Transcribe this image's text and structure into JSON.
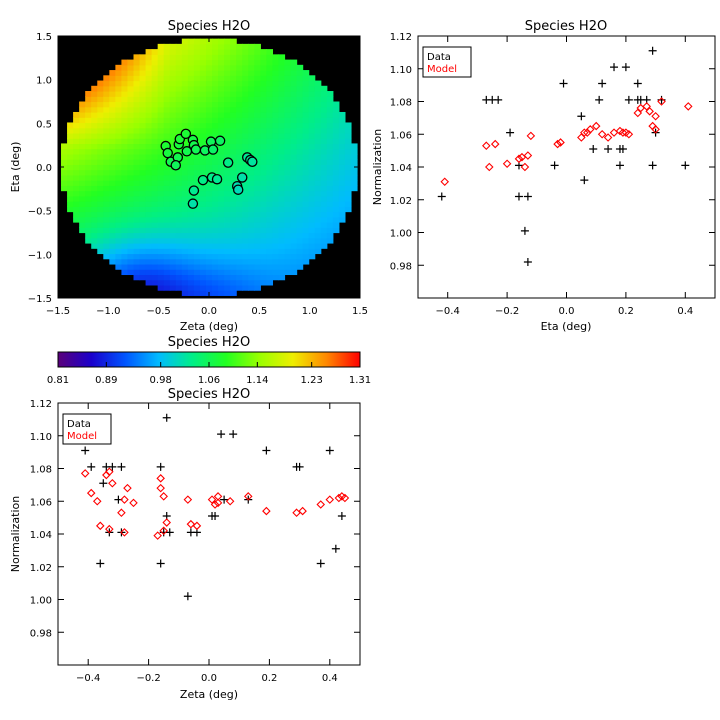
{
  "chart_data": [
    {
      "id": "map",
      "type": "heatmap",
      "title": "Species H2O",
      "xlabel": "Zeta (deg)",
      "ylabel": "Eta (deg)",
      "xlim": [
        -1.5,
        1.5
      ],
      "ylim": [
        -1.5,
        1.5
      ],
      "xticks": [
        -1.5,
        -1.0,
        -0.5,
        0.0,
        0.5,
        1.0,
        1.5
      ],
      "yticks": [
        -1.5,
        -1.0,
        -0.5,
        0.0,
        0.5,
        1.0,
        1.5
      ],
      "xtick_labels": [
        "−1.5",
        "−1.0",
        "−0.5",
        "0.0",
        "0.5",
        "1.0",
        "1.5"
      ],
      "ytick_labels": [
        "−1.5",
        "−1.0",
        "−0.5",
        "0.0",
        "0.5",
        "1.0",
        "1.5"
      ],
      "background": "#000000",
      "field_radius_deg": 1.47,
      "colormap": [
        "#5a007a",
        "#1a00cc",
        "#0055ff",
        "#00bbff",
        "#00ee88",
        "#22ff22",
        "#99ff00",
        "#eeee00",
        "#ff8800",
        "#ff0000"
      ],
      "points": [
        {
          "x": -0.43,
          "y": 0.24
        },
        {
          "x": -0.41,
          "y": 0.16
        },
        {
          "x": -0.38,
          "y": 0.06
        },
        {
          "x": -0.31,
          "y": 0.11
        },
        {
          "x": -0.3,
          "y": 0.26
        },
        {
          "x": -0.29,
          "y": 0.32
        },
        {
          "x": -0.33,
          "y": 0.02
        },
        {
          "x": -0.23,
          "y": 0.38
        },
        {
          "x": -0.22,
          "y": 0.18
        },
        {
          "x": -0.16,
          "y": 0.31
        },
        {
          "x": -0.15,
          "y": -0.27
        },
        {
          "x": -0.15,
          "y": 0.25
        },
        {
          "x": -0.13,
          "y": 0.2
        },
        {
          "x": -0.16,
          "y": -0.42
        },
        {
          "x": -0.06,
          "y": -0.15
        },
        {
          "x": -0.04,
          "y": 0.19
        },
        {
          "x": 0.02,
          "y": 0.29
        },
        {
          "x": 0.04,
          "y": 0.2
        },
        {
          "x": 0.03,
          "y": -0.12
        },
        {
          "x": 0.08,
          "y": -0.14
        },
        {
          "x": 0.11,
          "y": 0.3
        },
        {
          "x": 0.19,
          "y": 0.05
        },
        {
          "x": 0.28,
          "y": -0.22
        },
        {
          "x": 0.29,
          "y": -0.26
        },
        {
          "x": 0.33,
          "y": -0.12
        },
        {
          "x": 0.38,
          "y": 0.11
        },
        {
          "x": 0.41,
          "y": 0.08
        },
        {
          "x": 0.43,
          "y": 0.06
        }
      ]
    },
    {
      "id": "colorbar",
      "type": "colorbar",
      "title": "Species H2O",
      "vlim": [
        0.81,
        1.31
      ],
      "tick_values": [
        0.81,
        0.89,
        0.98,
        1.06,
        1.14,
        1.23,
        1.31
      ],
      "tick_labels": [
        "0.81",
        "0.89",
        "0.98",
        "1.06",
        "1.14",
        "1.23",
        "1.31"
      ]
    },
    {
      "id": "eta",
      "type": "scatter",
      "title": "Species H2O",
      "xlabel": "Eta (deg)",
      "ylabel": "Normalization",
      "xlim": [
        -0.5,
        0.5
      ],
      "ylim": [
        0.96,
        1.12
      ],
      "xticks": [
        -0.4,
        -0.2,
        0.0,
        0.2,
        0.4
      ],
      "yticks": [
        0.98,
        1.0,
        1.02,
        1.04,
        1.06,
        1.08,
        1.1,
        1.12
      ],
      "xtick_labels": [
        "−0.4",
        "−0.2",
        "0.0",
        "0.2",
        "0.4"
      ],
      "ytick_labels": [
        "0.98",
        "1.00",
        "1.02",
        "1.04",
        "1.06",
        "1.08",
        "1.10",
        "1.12"
      ],
      "legend": {
        "position": "top-left",
        "entries": [
          "Data",
          "Model"
        ]
      },
      "series": [
        {
          "name": "Data",
          "marker": "plus",
          "color": "#000000",
          "x": [
            -0.42,
            -0.27,
            -0.25,
            -0.23,
            -0.19,
            -0.16,
            -0.16,
            -0.14,
            -0.13,
            -0.13,
            -0.04,
            -0.01,
            0.05,
            0.06,
            0.09,
            0.11,
            0.12,
            0.14,
            0.16,
            0.18,
            0.18,
            0.19,
            0.2,
            0.21,
            0.24,
            0.24,
            0.25,
            0.27,
            0.29,
            0.29,
            0.3,
            0.32,
            0.4
          ],
          "y": [
            1.022,
            1.081,
            1.081,
            1.081,
            1.061,
            1.041,
            1.022,
            1.001,
            0.982,
            1.022,
            1.041,
            1.091,
            1.071,
            1.032,
            1.051,
            1.081,
            1.091,
            1.051,
            1.101,
            1.041,
            1.051,
            1.051,
            1.101,
            1.081,
            1.081,
            1.091,
            1.081,
            1.081,
            1.111,
            1.041,
            1.061,
            1.081,
            1.041
          ]
        },
        {
          "name": "Model",
          "marker": "diamond",
          "color": "#ff0000",
          "x": [
            -0.41,
            -0.27,
            -0.26,
            -0.24,
            -0.2,
            -0.16,
            -0.15,
            -0.14,
            -0.13,
            -0.12,
            -0.03,
            -0.02,
            0.05,
            0.06,
            0.07,
            0.08,
            0.1,
            0.12,
            0.14,
            0.16,
            0.18,
            0.19,
            0.2,
            0.21,
            0.24,
            0.25,
            0.27,
            0.28,
            0.29,
            0.3,
            0.3,
            0.32,
            0.41
          ],
          "y": [
            1.031,
            1.053,
            1.04,
            1.054,
            1.042,
            1.045,
            1.046,
            1.04,
            1.047,
            1.059,
            1.054,
            1.055,
            1.058,
            1.061,
            1.061,
            1.063,
            1.065,
            1.06,
            1.058,
            1.061,
            1.062,
            1.061,
            1.061,
            1.06,
            1.073,
            1.076,
            1.077,
            1.074,
            1.065,
            1.071,
            1.063,
            1.08,
            1.077
          ]
        }
      ]
    },
    {
      "id": "zeta",
      "type": "scatter",
      "title": "Species H2O",
      "xlabel": "Zeta (deg)",
      "ylabel": "Normalization",
      "xlim": [
        -0.5,
        0.5
      ],
      "ylim": [
        0.96,
        1.12
      ],
      "xticks": [
        -0.4,
        -0.2,
        0.0,
        0.2,
        0.4
      ],
      "yticks": [
        0.98,
        1.0,
        1.02,
        1.04,
        1.06,
        1.08,
        1.1,
        1.12
      ],
      "xtick_labels": [
        "−0.4",
        "−0.2",
        "0.0",
        "0.2",
        "0.4"
      ],
      "ytick_labels": [
        "0.98",
        "1.00",
        "1.02",
        "1.04",
        "1.06",
        "1.08",
        "1.10",
        "1.12"
      ],
      "legend": {
        "position": "top-left",
        "entries": [
          "Data",
          "Model"
        ]
      },
      "series": [
        {
          "name": "Data",
          "marker": "plus",
          "color": "#000000",
          "x": [
            -0.41,
            -0.39,
            -0.36,
            -0.35,
            -0.34,
            -0.33,
            -0.32,
            -0.3,
            -0.29,
            -0.29,
            -0.16,
            -0.16,
            -0.15,
            -0.14,
            -0.14,
            -0.13,
            -0.07,
            -0.06,
            -0.04,
            0.01,
            0.02,
            0.04,
            0.05,
            0.08,
            0.13,
            0.19,
            0.29,
            0.3,
            0.37,
            0.4,
            0.42,
            0.44
          ],
          "y": [
            1.091,
            1.081,
            1.022,
            1.071,
            1.081,
            1.041,
            1.081,
            1.061,
            1.081,
            1.041,
            1.081,
            1.022,
            1.041,
            1.111,
            1.051,
            1.041,
            1.002,
            1.041,
            1.041,
            1.051,
            1.051,
            1.101,
            1.061,
            1.101,
            1.061,
            1.091,
            1.081,
            1.081,
            1.022,
            1.091,
            1.031,
            1.051
          ]
        },
        {
          "name": "Model",
          "marker": "diamond",
          "color": "#ff0000",
          "x": [
            -0.41,
            -0.39,
            -0.37,
            -0.36,
            -0.34,
            -0.33,
            -0.33,
            -0.32,
            -0.29,
            -0.28,
            -0.28,
            -0.27,
            -0.25,
            -0.17,
            -0.16,
            -0.16,
            -0.15,
            -0.14,
            -0.15,
            -0.07,
            -0.06,
            -0.04,
            0.01,
            0.02,
            0.03,
            0.03,
            0.07,
            0.13,
            0.19,
            0.29,
            0.31,
            0.37,
            0.4,
            0.43,
            0.44,
            0.45
          ],
          "y": [
            1.077,
            1.065,
            1.06,
            1.045,
            1.076,
            1.078,
            1.043,
            1.071,
            1.053,
            1.041,
            1.061,
            1.068,
            1.059,
            1.039,
            1.074,
            1.068,
            1.042,
            1.047,
            1.063,
            1.061,
            1.046,
            1.045,
            1.061,
            1.058,
            1.063,
            1.059,
            1.06,
            1.063,
            1.054,
            1.053,
            1.054,
            1.058,
            1.061,
            1.062,
            1.063,
            1.062
          ]
        }
      ]
    }
  ]
}
